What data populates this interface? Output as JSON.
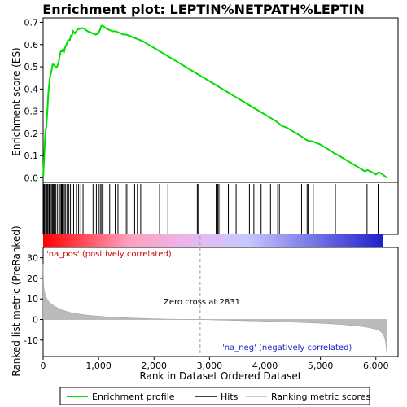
{
  "chart_data": {
    "type": "line",
    "title": "Enrichment plot: LEPTIN%NETPATH%LEPTIN",
    "top_panel": {
      "ylabel": "Enrichment score (ES)",
      "ylim": [
        -0.02,
        0.72
      ],
      "yticks": [
        "0.0",
        "0.1",
        "0.2",
        "0.3",
        "0.4",
        "0.5",
        "0.6",
        "0.7"
      ],
      "series_color": "#00dd00",
      "series": [
        {
          "name": "Enrichment profile",
          "x": [
            0,
            10,
            20,
            30,
            40,
            50,
            60,
            70,
            80,
            90,
            100,
            110,
            120,
            150,
            170,
            190,
            220,
            250,
            280,
            300,
            320,
            340,
            360,
            380,
            400,
            420,
            450,
            480,
            500,
            520,
            540,
            570,
            600,
            630,
            660,
            700,
            750,
            800,
            850,
            900,
            950,
            1000,
            1030,
            1050,
            1070,
            1100,
            1150,
            1200,
            1250,
            1300,
            1350,
            1400,
            1450,
            1480,
            1500,
            1550,
            1600,
            1700,
            1800,
            1900,
            2000,
            2100,
            2200,
            2300,
            2400,
            2500,
            2600,
            2700,
            2800,
            2900,
            3000,
            3100,
            3200,
            3300,
            3400,
            3500,
            3600,
            3700,
            3800,
            3900,
            4000,
            4100,
            4200,
            4250,
            4300,
            4400,
            4500,
            4600,
            4700,
            4750,
            4800,
            4850,
            4900,
            5000,
            5100,
            5200,
            5250,
            5300,
            5400,
            5500,
            5600,
            5700,
            5800,
            5850,
            5900,
            6000,
            6050,
            6100,
            6150,
            6200
          ],
          "y": [
            0.0,
            0.05,
            0.1,
            0.15,
            0.2,
            0.22,
            0.24,
            0.28,
            0.32,
            0.36,
            0.4,
            0.42,
            0.45,
            0.48,
            0.51,
            0.51,
            0.5,
            0.5,
            0.52,
            0.55,
            0.57,
            0.57,
            0.58,
            0.57,
            0.59,
            0.6,
            0.62,
            0.62,
            0.64,
            0.64,
            0.66,
            0.65,
            0.66,
            0.67,
            0.67,
            0.675,
            0.67,
            0.66,
            0.655,
            0.65,
            0.645,
            0.65,
            0.67,
            0.685,
            0.685,
            0.68,
            0.67,
            0.665,
            0.66,
            0.66,
            0.655,
            0.65,
            0.645,
            0.645,
            0.645,
            0.64,
            0.635,
            0.625,
            0.615,
            0.6,
            0.585,
            0.57,
            0.555,
            0.54,
            0.525,
            0.51,
            0.495,
            0.48,
            0.465,
            0.45,
            0.435,
            0.42,
            0.405,
            0.39,
            0.375,
            0.36,
            0.345,
            0.33,
            0.315,
            0.3,
            0.285,
            0.27,
            0.255,
            0.245,
            0.235,
            0.225,
            0.21,
            0.195,
            0.18,
            0.17,
            0.165,
            0.165,
            0.16,
            0.15,
            0.135,
            0.12,
            0.11,
            0.105,
            0.09,
            0.075,
            0.06,
            0.045,
            0.03,
            0.035,
            0.03,
            0.015,
            0.025,
            0.02,
            0.01,
            0.0
          ]
        }
      ]
    },
    "hits_panel": {
      "hit_ranks": [
        15,
        30,
        50,
        60,
        75,
        90,
        110,
        130,
        150,
        170,
        185,
        200,
        230,
        260,
        290,
        310,
        330,
        345,
        360,
        380,
        400,
        430,
        460,
        490,
        520,
        550,
        600,
        640,
        680,
        720,
        900,
        960,
        1010,
        1040,
        1060,
        1080,
        1200,
        1300,
        1350,
        1480,
        1510,
        1650,
        1700,
        1760,
        2100,
        2250,
        2780,
        2800,
        3120,
        3150,
        3170,
        3340,
        3480,
        3720,
        3800,
        3930,
        4100,
        4230,
        4260,
        4660,
        4760,
        4780,
        4870,
        5270,
        5840,
        6040
      ],
      "hit_color": "#000000",
      "gradient_colors": [
        "#ff0000",
        "#ff9fbe",
        "#e8b8f0",
        "#c8c8ff",
        "#2020cc"
      ]
    },
    "bottom_panel": {
      "ylabel": "Ranked list metric (PreRanked)",
      "xlabel": "Rank in Dataset Ordered Dataset",
      "xlim": [
        0,
        6400
      ],
      "ylim": [
        -18,
        35
      ],
      "yticks": [
        "-10",
        "0",
        "10",
        "20",
        "30"
      ],
      "xticks": [
        "0",
        "1,000",
        "2,000",
        "3,000",
        "4,000",
        "5,000",
        "6,000"
      ],
      "metric_ranks": [
        0,
        10,
        20,
        40,
        60,
        80,
        100,
        130,
        160,
        200,
        250,
        300,
        350,
        400,
        450,
        500,
        600,
        700,
        800,
        900,
        1000,
        1200,
        1400,
        1600,
        1800,
        2000,
        2200,
        2400,
        2600,
        2831,
        3000,
        3300,
        3600,
        3900,
        4200,
        4500,
        4800,
        5100,
        5400,
        5600,
        5800,
        5900,
        6000,
        6050,
        6100,
        6130,
        6160,
        6180,
        6200
      ],
      "metric_values": [
        27,
        16,
        14,
        12,
        10.5,
        9.5,
        8.8,
        8,
        7.3,
        6.6,
        5.8,
        5.1,
        4.6,
        4.1,
        3.7,
        3.3,
        2.8,
        2.4,
        2.1,
        1.8,
        1.6,
        1.2,
        0.9,
        0.7,
        0.5,
        0.35,
        0.2,
        0.1,
        0.05,
        0,
        -0.15,
        -0.35,
        -0.55,
        -0.75,
        -1.0,
        -1.3,
        -1.6,
        -2.0,
        -2.5,
        -3.0,
        -3.6,
        -4.1,
        -4.8,
        -5.3,
        -6.2,
        -7.2,
        -9,
        -12,
        -17
      ],
      "pos_label": "'na_pos' (positively correlated)",
      "neg_label": "'na_neg' (negatively correlated)",
      "zero_cross_label": "Zero cross at 2831",
      "zero_cross_rank": 2831
    },
    "legend": {
      "items": [
        {
          "label": "Enrichment profile",
          "color": "#00dd00",
          "kind": "line"
        },
        {
          "label": "Hits",
          "color": "#000000",
          "kind": "line"
        },
        {
          "label": "Ranking metric scores",
          "color": "#bbbbbb",
          "kind": "line"
        }
      ]
    }
  }
}
